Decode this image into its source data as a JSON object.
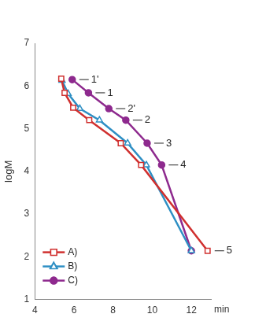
{
  "chart_data": {
    "type": "line",
    "x_label": "min",
    "y_label": "logM",
    "xlim": [
      4,
      13
    ],
    "xticks": [
      4,
      6,
      8,
      10,
      12
    ],
    "ylim": [
      1,
      7
    ],
    "yticks": [
      1,
      2,
      3,
      4,
      5,
      6,
      7
    ],
    "grid": false,
    "legend": "lower left",
    "series": [
      {
        "name": "A)",
        "color": "#d0302f",
        "marker": "open square",
        "line_style": "solid",
        "x": [
          5.35,
          5.52,
          5.96,
          6.78,
          8.39,
          9.43,
          12.83
        ],
        "values": [
          6.17,
          5.84,
          5.49,
          5.2,
          4.66,
          4.15,
          2.14
        ]
      },
      {
        "name": "B)",
        "color": "#2e8fc4",
        "marker": "open triangle",
        "line_style": "solid",
        "x": [
          5.39,
          5.7,
          6.3,
          7.3,
          8.74,
          9.7,
          12.0
        ],
        "values": [
          6.13,
          5.82,
          5.47,
          5.2,
          4.66,
          4.15,
          2.14
        ]
      },
      {
        "name": "C)",
        "color": "#8e2a8e",
        "marker": "circle",
        "line_style": "solid",
        "x": [
          5.91,
          6.74,
          7.78,
          8.65,
          9.74,
          10.48,
          12.0
        ],
        "values": [
          6.15,
          5.84,
          5.47,
          5.2,
          4.66,
          4.15,
          2.14
        ]
      }
    ],
    "annotations": [
      {
        "text": "1'",
        "x": 5.91,
        "y": 6.15
      },
      {
        "text": "1",
        "x": 6.74,
        "y": 5.84
      },
      {
        "text": "2'",
        "x": 7.78,
        "y": 5.47
      },
      {
        "text": "2",
        "x": 8.65,
        "y": 5.2
      },
      {
        "text": "3",
        "x": 9.74,
        "y": 4.66
      },
      {
        "text": "4",
        "x": 10.48,
        "y": 4.15
      },
      {
        "text": "5",
        "x": 12.83,
        "y": 2.14
      }
    ]
  }
}
